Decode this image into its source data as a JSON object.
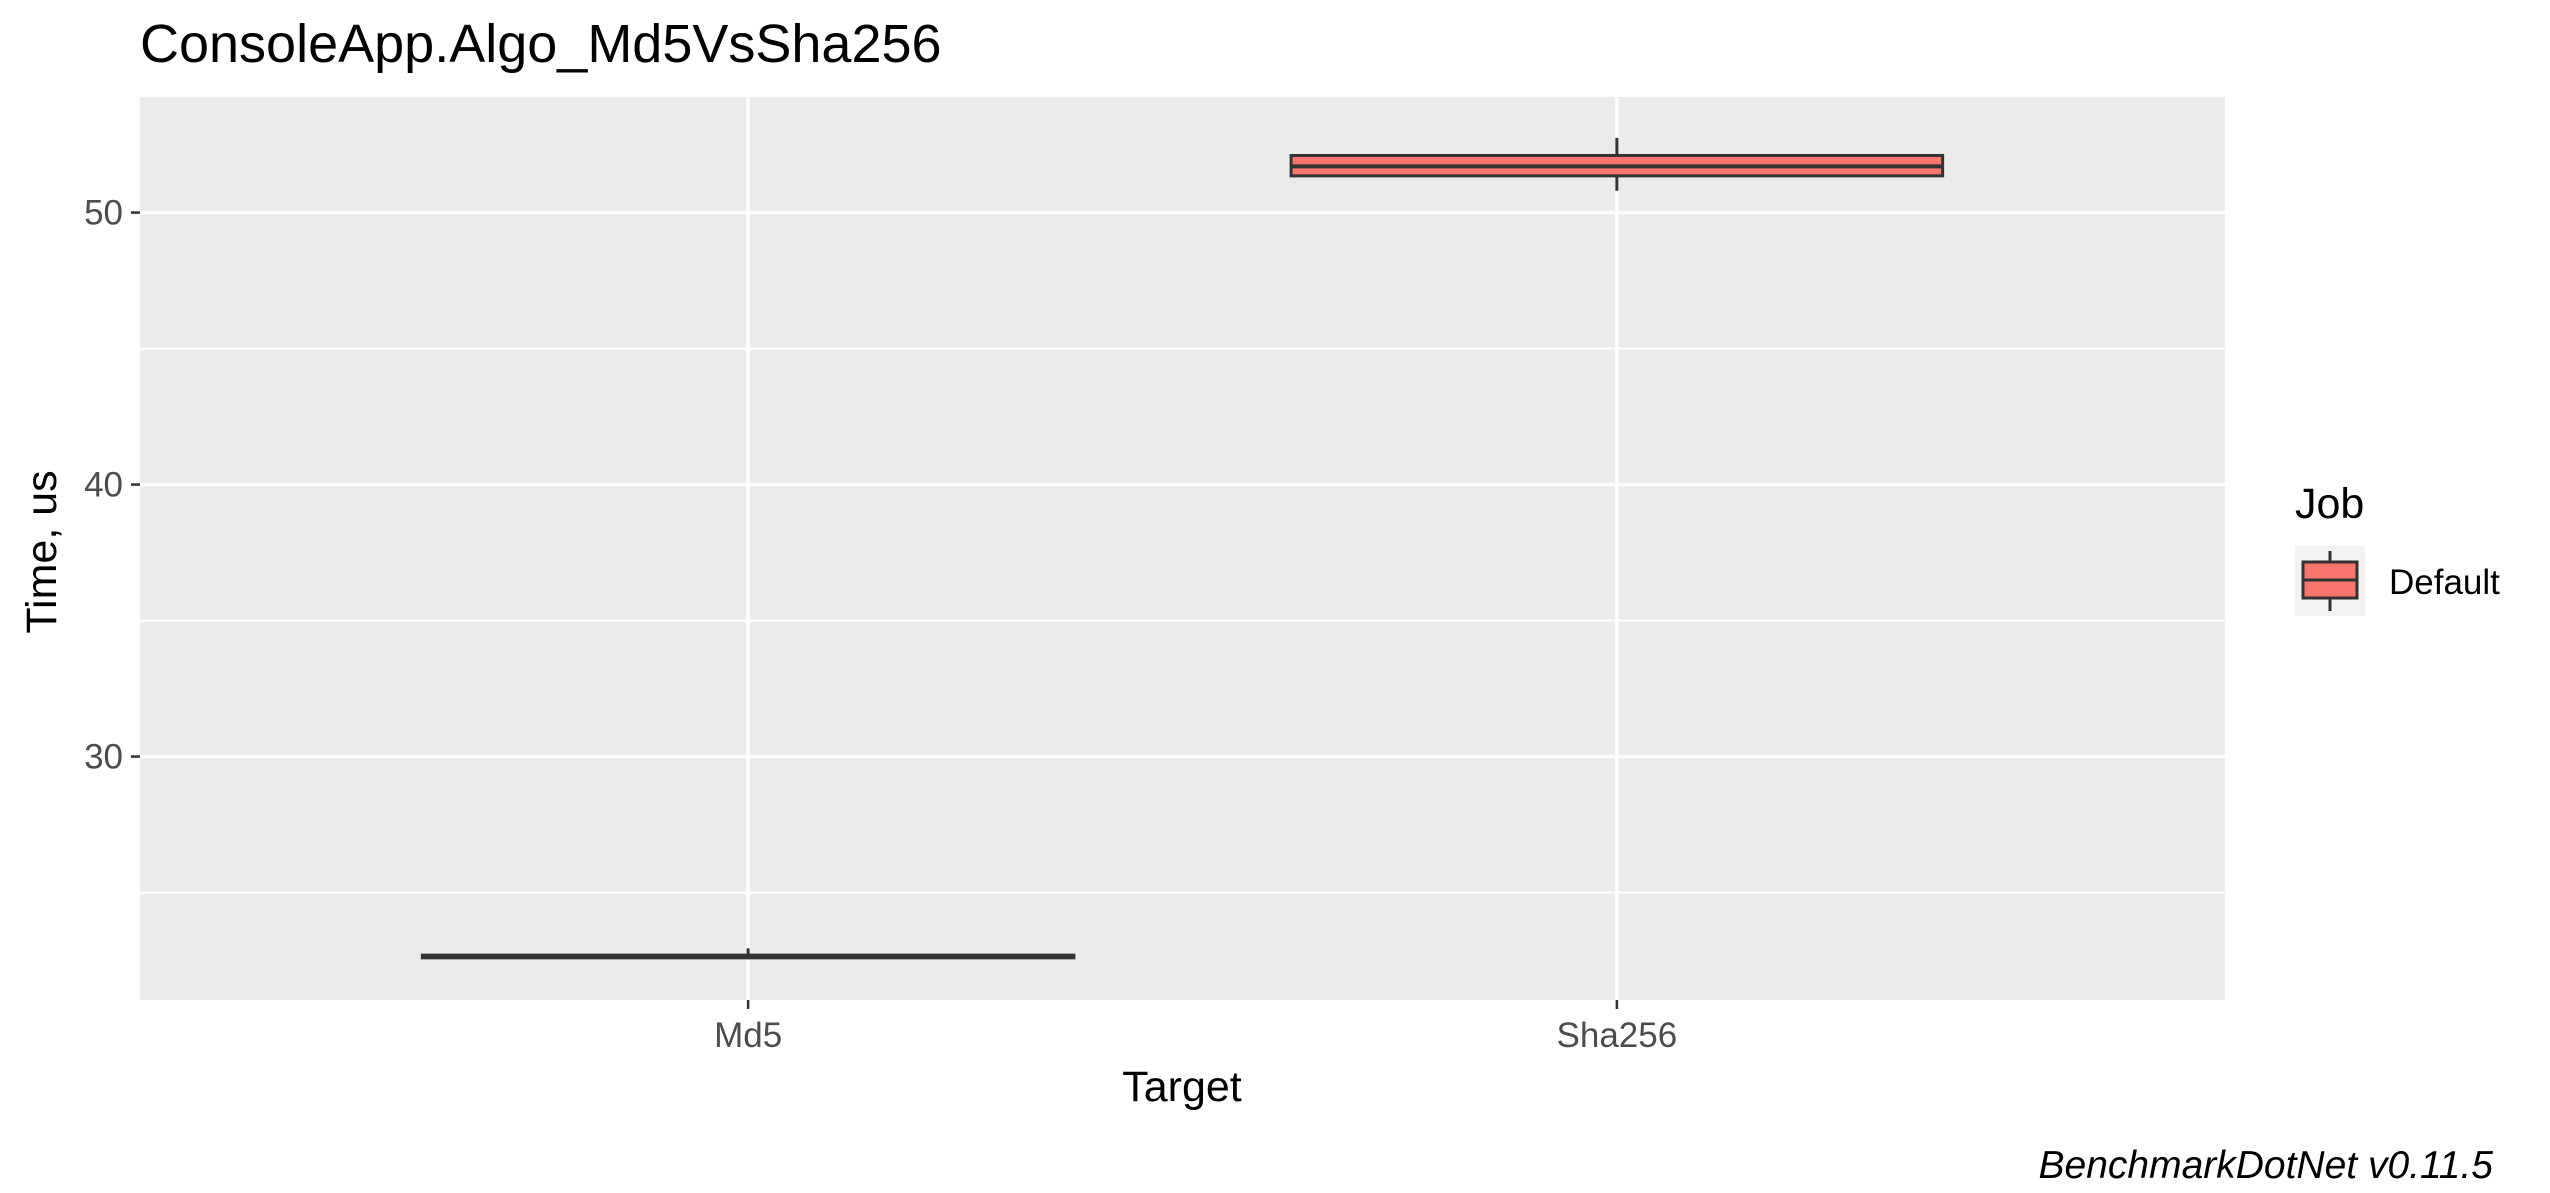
{
  "chart_data": {
    "type": "boxplot",
    "title": "ConsoleApp.Algo_Md5VsSha256",
    "xlabel": "Target",
    "ylabel": "Time, us",
    "categories": [
      "Md5",
      "Sha256"
    ],
    "series": [
      {
        "name": "Default",
        "color": "#F8766D",
        "boxes": [
          {
            "category": "Md5",
            "min": 22.55,
            "q1": 22.6,
            "median": 22.65,
            "q3": 22.7,
            "max": 22.95
          },
          {
            "category": "Sha256",
            "min": 50.8,
            "q1": 51.35,
            "median": 51.7,
            "q3": 52.1,
            "max": 52.75
          }
        ]
      }
    ],
    "ylim": [
      21.05,
      54.25
    ],
    "y_ticks": [
      30,
      40,
      50
    ],
    "y_minor_ticks": [
      25,
      35,
      45
    ],
    "grid": true,
    "legend": {
      "title": "Job",
      "placement": "right",
      "entries": [
        "Default"
      ]
    },
    "caption": "BenchmarkDotNet v0.11.5",
    "panel_background": "#EBEBEB",
    "box_outline": "#333333"
  }
}
